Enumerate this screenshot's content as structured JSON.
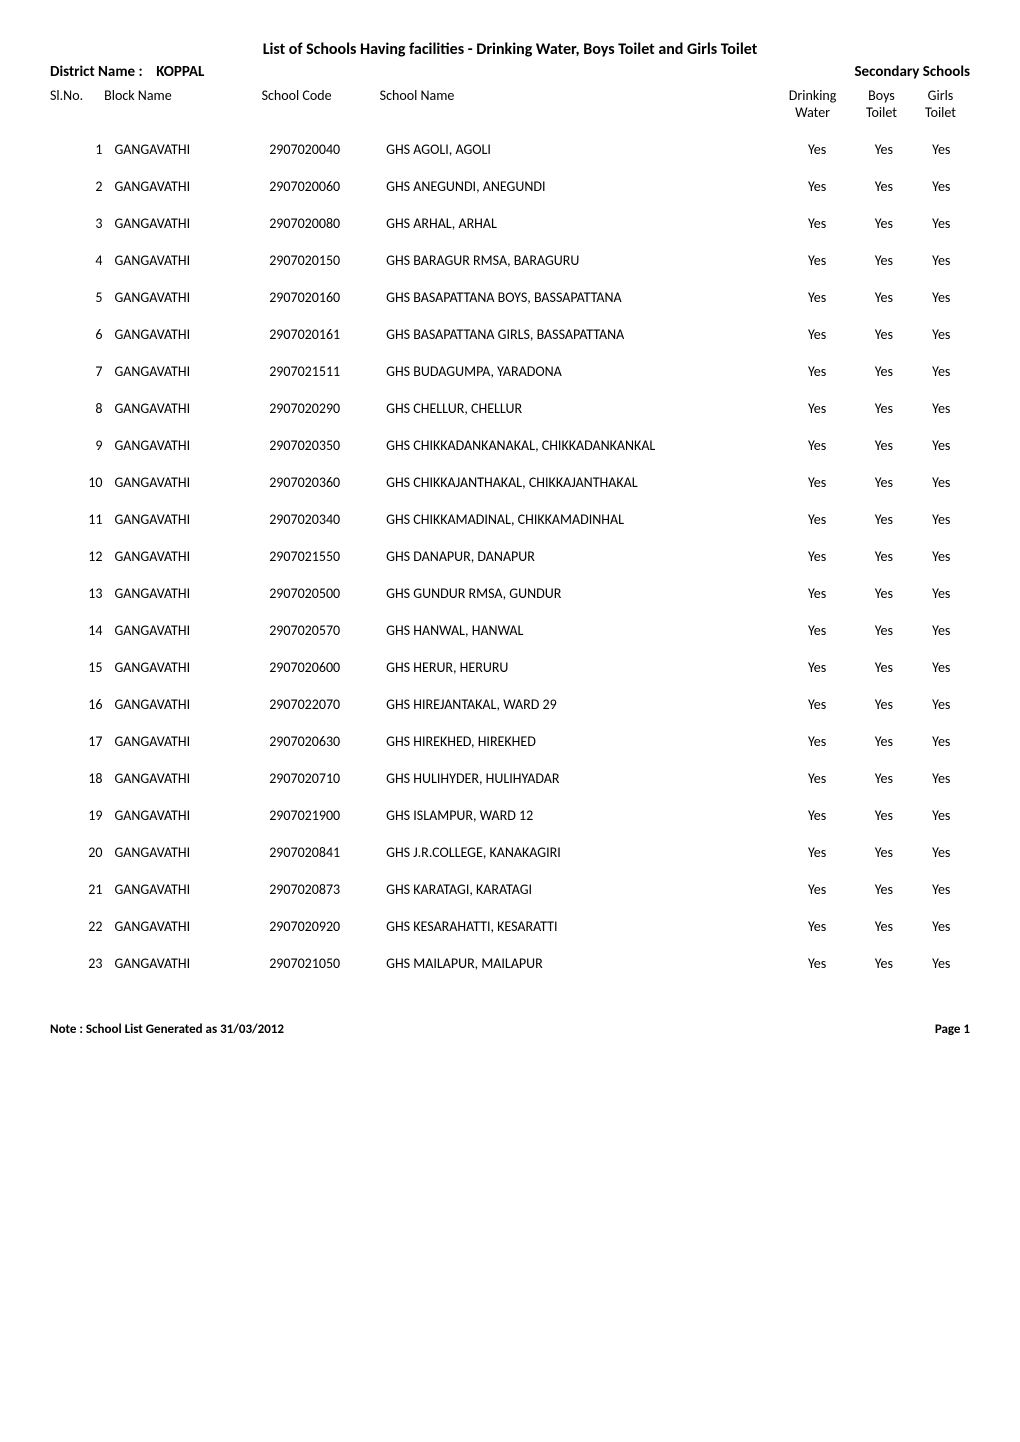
{
  "title": "List of Schools Having facilities - Drinking Water, Boys Toilet and Girls Toilet",
  "district_label": "District Name :",
  "district_name": "KOPPAL",
  "right_heading": "Secondary Schools",
  "columns": {
    "slno": "Sl.No.",
    "block": "Block Name",
    "code": "School Code",
    "name": "School Name",
    "drink": "Drinking\nWater",
    "boys": "Boys\nToilet",
    "girls": "Girls\nToilet"
  },
  "rows": [
    {
      "slno": "1",
      "block": "GANGAVATHI",
      "code": "2907020040",
      "name": "GHS AGOLI, AGOLI",
      "drink": "Yes",
      "boys": "Yes",
      "girls": "Yes"
    },
    {
      "slno": "2",
      "block": "GANGAVATHI",
      "code": "2907020060",
      "name": "GHS ANEGUNDI, ANEGUNDI",
      "drink": "Yes",
      "boys": "Yes",
      "girls": "Yes"
    },
    {
      "slno": "3",
      "block": "GANGAVATHI",
      "code": "2907020080",
      "name": "GHS ARHAL, ARHAL",
      "drink": "Yes",
      "boys": "Yes",
      "girls": "Yes"
    },
    {
      "slno": "4",
      "block": "GANGAVATHI",
      "code": "2907020150",
      "name": "GHS BARAGUR RMSA, BARAGURU",
      "drink": "Yes",
      "boys": "Yes",
      "girls": "Yes"
    },
    {
      "slno": "5",
      "block": "GANGAVATHI",
      "code": "2907020160",
      "name": "GHS BASAPATTANA BOYS, BASSAPATTANA",
      "drink": "Yes",
      "boys": "Yes",
      "girls": "Yes"
    },
    {
      "slno": "6",
      "block": "GANGAVATHI",
      "code": "2907020161",
      "name": "GHS BASAPATTANA GIRLS, BASSAPATTANA",
      "drink": "Yes",
      "boys": "Yes",
      "girls": "Yes"
    },
    {
      "slno": "7",
      "block": "GANGAVATHI",
      "code": "2907021511",
      "name": "GHS BUDAGUMPA, YARADONA",
      "drink": "Yes",
      "boys": "Yes",
      "girls": "Yes"
    },
    {
      "slno": "8",
      "block": "GANGAVATHI",
      "code": "2907020290",
      "name": "GHS CHELLUR, CHELLUR",
      "drink": "Yes",
      "boys": "Yes",
      "girls": "Yes"
    },
    {
      "slno": "9",
      "block": "GANGAVATHI",
      "code": "2907020350",
      "name": "GHS CHIKKADANKANAKAL, CHIKKADANKANKAL",
      "drink": "Yes",
      "boys": "Yes",
      "girls": "Yes"
    },
    {
      "slno": "10",
      "block": "GANGAVATHI",
      "code": "2907020360",
      "name": "GHS CHIKKAJANTHAKAL, CHIKKAJANTHAKAL",
      "drink": "Yes",
      "boys": "Yes",
      "girls": "Yes"
    },
    {
      "slno": "11",
      "block": "GANGAVATHI",
      "code": "2907020340",
      "name": "GHS CHIKKAMADINAL, CHIKKAMADINHAL",
      "drink": "Yes",
      "boys": "Yes",
      "girls": "Yes"
    },
    {
      "slno": "12",
      "block": "GANGAVATHI",
      "code": "2907021550",
      "name": "GHS DANAPUR, DANAPUR",
      "drink": "Yes",
      "boys": "Yes",
      "girls": "Yes"
    },
    {
      "slno": "13",
      "block": "GANGAVATHI",
      "code": "2907020500",
      "name": "GHS GUNDUR RMSA, GUNDUR",
      "drink": "Yes",
      "boys": "Yes",
      "girls": "Yes"
    },
    {
      "slno": "14",
      "block": "GANGAVATHI",
      "code": "2907020570",
      "name": "GHS HANWAL, HANWAL",
      "drink": "Yes",
      "boys": "Yes",
      "girls": "Yes"
    },
    {
      "slno": "15",
      "block": "GANGAVATHI",
      "code": "2907020600",
      "name": "GHS HERUR, HERURU",
      "drink": "Yes",
      "boys": "Yes",
      "girls": "Yes"
    },
    {
      "slno": "16",
      "block": "GANGAVATHI",
      "code": "2907022070",
      "name": "GHS HIREJANTAKAL, WARD 29",
      "drink": "Yes",
      "boys": "Yes",
      "girls": "Yes"
    },
    {
      "slno": "17",
      "block": "GANGAVATHI",
      "code": "2907020630",
      "name": "GHS HIREKHED, HIREKHED",
      "drink": "Yes",
      "boys": "Yes",
      "girls": "Yes"
    },
    {
      "slno": "18",
      "block": "GANGAVATHI",
      "code": "2907020710",
      "name": "GHS HULIHYDER, HULIHYADAR",
      "drink": "Yes",
      "boys": "Yes",
      "girls": "Yes"
    },
    {
      "slno": "19",
      "block": "GANGAVATHI",
      "code": "2907021900",
      "name": "GHS ISLAMPUR, WARD 12",
      "drink": "Yes",
      "boys": "Yes",
      "girls": "Yes"
    },
    {
      "slno": "20",
      "block": "GANGAVATHI",
      "code": "2907020841",
      "name": "GHS J.R.COLLEGE, KANAKAGIRI",
      "drink": "Yes",
      "boys": "Yes",
      "girls": "Yes"
    },
    {
      "slno": "21",
      "block": "GANGAVATHI",
      "code": "2907020873",
      "name": "GHS KARATAGI, KARATAGI",
      "drink": "Yes",
      "boys": "Yes",
      "girls": "Yes"
    },
    {
      "slno": "22",
      "block": "GANGAVATHI",
      "code": "2907020920",
      "name": "GHS KESARAHATTI, KESARATTI",
      "drink": "Yes",
      "boys": "Yes",
      "girls": "Yes"
    },
    {
      "slno": "23",
      "block": "GANGAVATHI",
      "code": "2907021050",
      "name": "GHS MAILAPUR, MAILAPUR",
      "drink": "Yes",
      "boys": "Yes",
      "girls": "Yes"
    }
  ],
  "footer_left": "Note : School List Generated as 31/03/2012",
  "footer_right": "Page 1"
}
